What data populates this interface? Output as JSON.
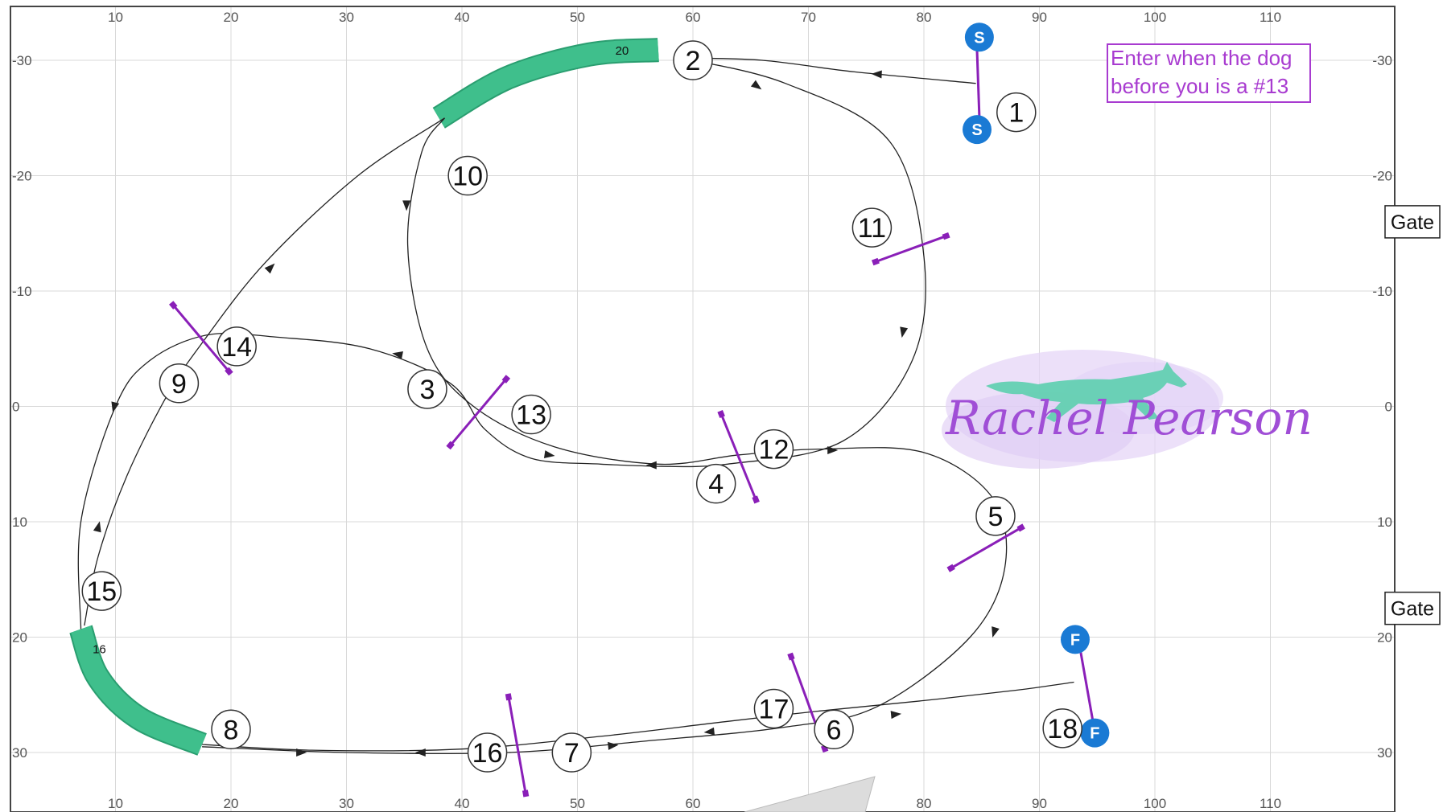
{
  "field": {
    "x_range": [
      0,
      120
    ],
    "y_range": [
      -35,
      35
    ],
    "x_ticks": [
      10,
      20,
      30,
      40,
      50,
      60,
      70,
      80,
      90,
      100,
      110
    ],
    "y_ticks": [
      -30,
      -20,
      -10,
      0,
      10,
      20,
      30
    ],
    "y_tick_labels": [
      "-30",
      "-20",
      "-10",
      "0",
      "10",
      "20",
      "30"
    ],
    "grid_color": "#d8d8d8",
    "border_color": "#444444"
  },
  "colors": {
    "tunnel": "#3fbf8c",
    "tunnel_edge": "#2a9e70",
    "jump_bar": "#8a1fb8",
    "handler": "#1a7ad4",
    "path": "#222222"
  },
  "gates": [
    {
      "label": "Gate",
      "y": -16
    },
    {
      "label": "Gate",
      "y": 17.5
    }
  ],
  "note": {
    "lines": [
      "Enter when the dog",
      "before you is a #13"
    ]
  },
  "watermark": {
    "text": "Rachel Pearson",
    "icon": "running-dog-icon"
  },
  "handler_markers": [
    {
      "label": "S",
      "x": 84.8,
      "y": -32
    },
    {
      "label": "S",
      "x": 84.6,
      "y": -24
    },
    {
      "label": "F",
      "x": 93.1,
      "y": 20.2
    },
    {
      "label": "F",
      "x": 94.8,
      "y": 28.3
    }
  ],
  "tunnels": [
    {
      "label": "20",
      "points": [
        [
          38,
          -25
        ],
        [
          44,
          -28.5
        ],
        [
          51,
          -30.5
        ],
        [
          57,
          -30.9
        ]
      ]
    },
    {
      "label": "16",
      "points": [
        [
          7,
          19.3
        ],
        [
          8.5,
          23.5
        ],
        [
          12,
          27
        ],
        [
          17.5,
          29.3
        ]
      ]
    }
  ],
  "jumps": [
    {
      "center": [
        84.7,
        -28
      ],
      "angle": 88,
      "length": 7.5,
      "style": "handler-line"
    },
    {
      "center": [
        17.5,
        -5.8
      ],
      "angle": 50,
      "length": 7.5
    },
    {
      "center": [
        41.5,
        0.4
      ],
      "angle": -50,
      "length": 7.5
    },
    {
      "center": [
        64,
        4.5
      ],
      "angle": 68,
      "length": 8
    },
    {
      "center": [
        85.5,
        12.2
      ],
      "angle": -30,
      "length": 7
    },
    {
      "center": [
        79,
        -13.7
      ],
      "angle": -20,
      "length": 6.5
    },
    {
      "center": [
        44.8,
        29.5
      ],
      "angle": 80,
      "length": 8.5
    },
    {
      "center": [
        70,
        25.8
      ],
      "angle": 70,
      "length": 8.5
    },
    {
      "center": [
        94,
        23.7
      ],
      "angle": 80,
      "length": 8
    }
  ],
  "numbers": [
    {
      "label": "1",
      "x": 88,
      "y": -25.5
    },
    {
      "label": "2",
      "x": 60,
      "y": -30
    },
    {
      "label": "3",
      "x": 37,
      "y": -1.5
    },
    {
      "label": "4",
      "x": 62,
      "y": 6.7
    },
    {
      "label": "5",
      "x": 86.2,
      "y": 9.5
    },
    {
      "label": "6",
      "x": 72.2,
      "y": 28
    },
    {
      "label": "7",
      "x": 49.5,
      "y": 30
    },
    {
      "label": "8",
      "x": 20,
      "y": 28
    },
    {
      "label": "9",
      "x": 15.5,
      "y": -2
    },
    {
      "label": "10",
      "x": 40.5,
      "y": -20
    },
    {
      "label": "11",
      "x": 75.5,
      "y": -15.5
    },
    {
      "label": "12",
      "x": 67,
      "y": 3.7
    },
    {
      "label": "13",
      "x": 46,
      "y": 0.7
    },
    {
      "label": "14",
      "x": 20.5,
      "y": -5.2
    },
    {
      "label": "15",
      "x": 8.8,
      "y": 16
    },
    {
      "label": "16",
      "x": 42.2,
      "y": 30
    },
    {
      "label": "17",
      "x": 67,
      "y": 26.2
    },
    {
      "label": "18",
      "x": 92,
      "y": 27.9
    }
  ],
  "path": {
    "segments": [
      [
        [
          84.5,
          -28
        ],
        [
          74,
          -29
        ],
        [
          66,
          -30
        ],
        [
          59,
          -30.2
        ]
      ],
      [
        [
          59,
          -30.2
        ],
        [
          68,
          -28
        ],
        [
          77,
          -23
        ],
        [
          80,
          -13
        ],
        [
          79,
          -4
        ],
        [
          73,
          3
        ],
        [
          63,
          5
        ],
        [
          57,
          5.2
        ]
      ],
      [
        [
          57,
          5.2
        ],
        [
          52,
          5
        ],
        [
          46,
          4.5
        ],
        [
          42,
          2
        ],
        [
          39,
          -2
        ],
        [
          32,
          -5
        ],
        [
          24,
          -6
        ],
        [
          18,
          -6.2
        ],
        [
          13,
          -4
        ],
        [
          10,
          0
        ],
        [
          7,
          10
        ],
        [
          7,
          19.3
        ]
      ],
      [
        [
          17.5,
          29.5
        ],
        [
          30,
          30
        ],
        [
          44,
          30
        ],
        [
          56,
          29
        ],
        [
          68,
          27.8
        ],
        [
          76,
          26
        ],
        [
          84,
          20
        ],
        [
          87,
          14
        ],
        [
          86,
          8
        ],
        [
          80,
          4
        ],
        [
          71,
          3.7
        ],
        [
          64,
          4.2
        ],
        [
          57,
          5
        ],
        [
          48,
          3.5
        ],
        [
          41,
          0
        ],
        [
          37,
          -5
        ],
        [
          35.3,
          -14
        ],
        [
          36.5,
          -22
        ],
        [
          38.5,
          -25
        ]
      ],
      [
        [
          38.5,
          -25
        ],
        [
          31,
          -20
        ],
        [
          23,
          -12.5
        ],
        [
          17.5,
          -5.5
        ],
        [
          14.5,
          -1
        ],
        [
          11,
          6
        ],
        [
          8.5,
          13
        ],
        [
          7.3,
          19
        ]
      ],
      [
        [
          17.5,
          29.3
        ],
        [
          27,
          29.8
        ],
        [
          40,
          29.7
        ],
        [
          52,
          28.6
        ],
        [
          63,
          27.3
        ],
        [
          71,
          26.4
        ],
        [
          80,
          25.5
        ],
        [
          88,
          24.6
        ],
        [
          93,
          23.9
        ]
      ]
    ],
    "arrows": [
      {
        "at": [
          76,
          -28.8
        ],
        "dir": [
          -1,
          -0.05
        ]
      },
      {
        "at": [
          65.5,
          -27.8
        ],
        "dir": [
          0.8,
          0.6
        ]
      },
      {
        "at": [
          78.2,
          -6.5
        ],
        "dir": [
          -0.2,
          1
        ]
      },
      {
        "at": [
          56.5,
          5.1
        ],
        "dir": [
          -1,
          0
        ]
      },
      {
        "at": [
          34.5,
          -4.5
        ],
        "dir": [
          -1,
          -0.2
        ]
      },
      {
        "at": [
          9.9,
          0
        ],
        "dir": [
          -0.25,
          1
        ]
      },
      {
        "at": [
          26,
          30
        ],
        "dir": [
          1,
          0
        ]
      },
      {
        "at": [
          36.5,
          30
        ],
        "dir": [
          -1,
          0
        ]
      },
      {
        "at": [
          72,
          3.8
        ],
        "dir": [
          1,
          0
        ]
      },
      {
        "at": [
          86.1,
          19.5
        ],
        "dir": [
          -0.3,
          1
        ]
      },
      {
        "at": [
          61.5,
          28.2
        ],
        "dir": [
          -1,
          0.1
        ]
      },
      {
        "at": [
          47.5,
          4.2
        ],
        "dir": [
          1,
          0.15
        ]
      },
      {
        "at": [
          35.2,
          -17.5
        ],
        "dir": [
          0,
          1
        ]
      },
      {
        "at": [
          23.4,
          -12
        ],
        "dir": [
          0.7,
          -0.7
        ]
      },
      {
        "at": [
          8.5,
          10.5
        ],
        "dir": [
          0.25,
          -1
        ]
      },
      {
        "at": [
          53,
          29.4
        ],
        "dir": [
          1,
          -0.1
        ]
      },
      {
        "at": [
          77.5,
          26.7
        ],
        "dir": [
          1,
          -0.1
        ]
      }
    ]
  }
}
